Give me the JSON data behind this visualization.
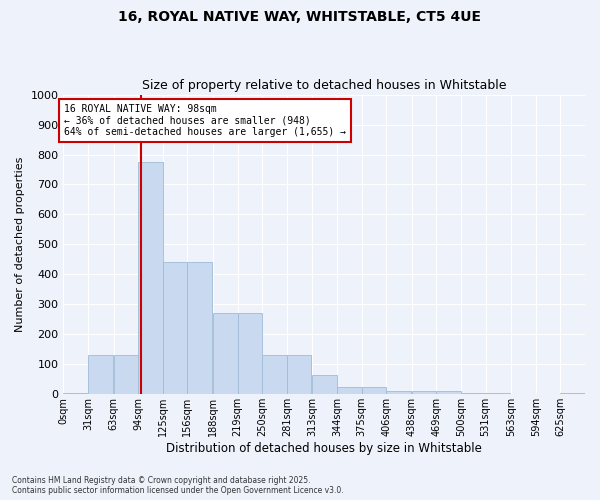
{
  "title1": "16, ROYAL NATIVE WAY, WHITSTABLE, CT5 4UE",
  "title2": "Size of property relative to detached houses in Whitstable",
  "xlabel": "Distribution of detached houses by size in Whitstable",
  "ylabel": "Number of detached properties",
  "bar_color": "#c9d9f0",
  "bar_edge_color": "#a0bcd8",
  "bins_start": [
    0,
    31,
    63,
    94,
    125,
    156,
    188,
    219,
    250,
    281,
    313,
    344,
    375,
    406,
    438,
    469,
    500,
    531,
    563,
    594,
    625
  ],
  "bin_width": 31,
  "values": [
    5,
    130,
    130,
    775,
    440,
    440,
    270,
    270,
    130,
    130,
    65,
    25,
    25,
    10,
    10,
    10,
    5,
    5,
    0,
    0,
    5
  ],
  "bin_labels": [
    "0sqm",
    "31sqm",
    "63sqm",
    "94sqm",
    "125sqm",
    "156sqm",
    "188sqm",
    "219sqm",
    "250sqm",
    "281sqm",
    "313sqm",
    "344sqm",
    "375sqm",
    "406sqm",
    "438sqm",
    "469sqm",
    "500sqm",
    "531sqm",
    "563sqm",
    "594sqm",
    "625sqm"
  ],
  "property_size": 98,
  "vline_color": "#cc0000",
  "annotation_text": "16 ROYAL NATIVE WAY: 98sqm\n← 36% of detached houses are smaller (948)\n64% of semi-detached houses are larger (1,655) →",
  "annotation_box_facecolor": "#ffffff",
  "annotation_box_edgecolor": "#cc0000",
  "ylim": [
    0,
    1000
  ],
  "yticks": [
    0,
    100,
    200,
    300,
    400,
    500,
    600,
    700,
    800,
    900,
    1000
  ],
  "background_color": "#eef2fb",
  "axes_background": "#eef2fb",
  "grid_color": "#ffffff",
  "footnote1": "Contains HM Land Registry data © Crown copyright and database right 2025.",
  "footnote2": "Contains public sector information licensed under the Open Government Licence v3.0."
}
